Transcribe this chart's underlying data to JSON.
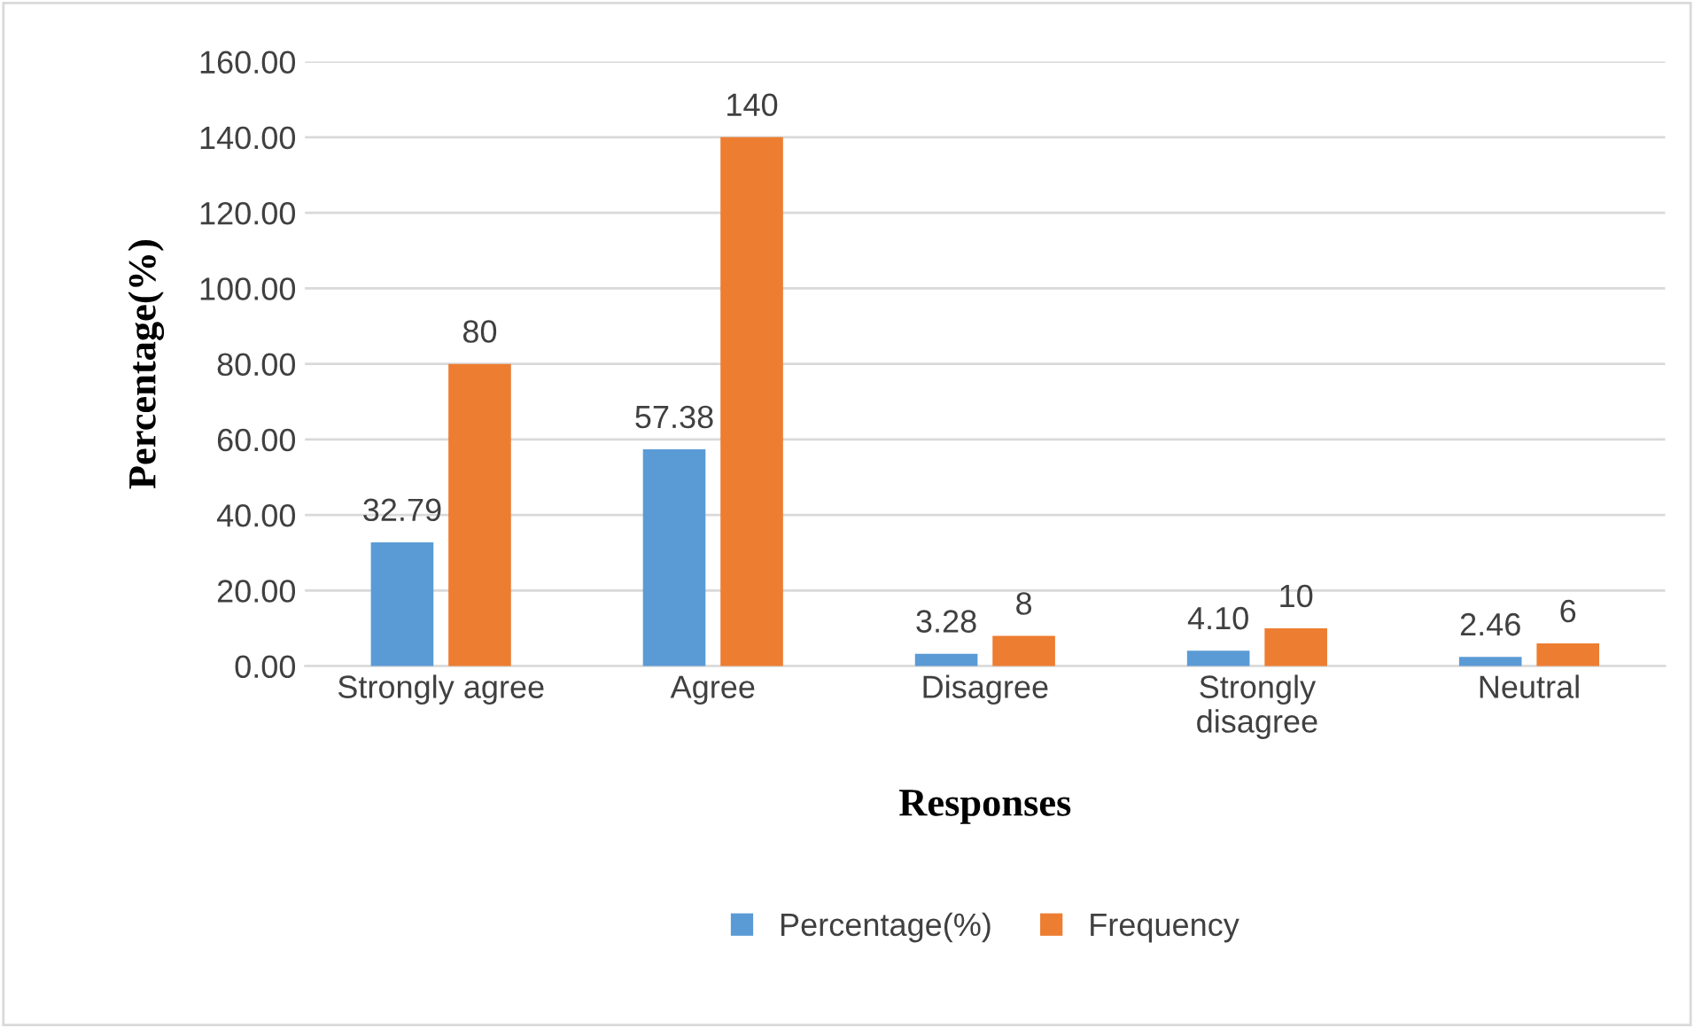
{
  "chart_data": {
    "type": "bar",
    "xlabel": "Responses",
    "ylabel": "Percentage(%)",
    "categories": [
      "Strongly agree",
      "Agree",
      "Disagree",
      "Strongly\ndisagree",
      "Neutral"
    ],
    "series": [
      {
        "name": "Percentage(%)",
        "color": "#5b9bd5",
        "values": [
          32.79,
          57.38,
          3.28,
          4.1,
          2.46
        ],
        "value_labels": [
          "32.79",
          "57.38",
          "3.28",
          "4.10",
          "2.46"
        ]
      },
      {
        "name": "Frequency",
        "color": "#ed7d31",
        "values": [
          80,
          140,
          8,
          10,
          6
        ],
        "value_labels": [
          "80",
          "140",
          "8",
          "10",
          "6"
        ]
      }
    ],
    "ylim": [
      0,
      160
    ],
    "yticks": [
      {
        "value": 0,
        "label": "0.00"
      },
      {
        "value": 20,
        "label": "20.00"
      },
      {
        "value": 40,
        "label": "40.00"
      },
      {
        "value": 60,
        "label": "60.00"
      },
      {
        "value": 80,
        "label": "80.00"
      },
      {
        "value": 100,
        "label": "100.00"
      },
      {
        "value": 120,
        "label": "120.00"
      },
      {
        "value": 140,
        "label": "140.00"
      },
      {
        "value": 160,
        "label": "160.00"
      }
    ],
    "grid": "y",
    "legend": "bottom"
  }
}
